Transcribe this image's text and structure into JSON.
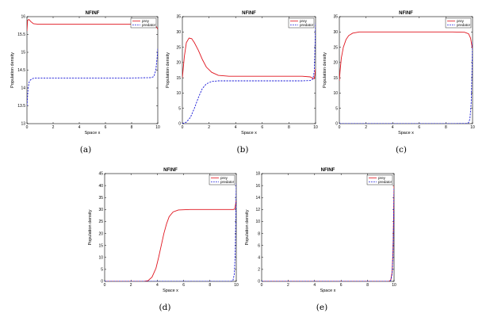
{
  "chart_data": [
    {
      "type": "line",
      "title": "NFINF",
      "xlabel": "Space x",
      "ylabel": "Population density",
      "caption": "(a)",
      "xlim": [
        0,
        10
      ],
      "ylim": [
        13,
        16
      ],
      "xticks": [
        "0",
        "2",
        "4",
        "6",
        "8",
        "10"
      ],
      "yticks": [
        "13",
        "13.5",
        "14",
        "14.5",
        "15",
        "15.5",
        "16"
      ],
      "legend": {
        "position": "top-right",
        "entries": [
          "prey",
          "predator"
        ]
      },
      "series": [
        {
          "name": "prey",
          "color": "#e0141e",
          "style": "solid",
          "x": [
            0,
            0.05,
            0.15,
            0.3,
            0.5,
            0.8,
            1.5,
            3,
            5,
            7,
            9,
            9.6,
            9.85,
            10
          ],
          "y": [
            15.6,
            15.9,
            15.92,
            15.86,
            15.8,
            15.79,
            15.79,
            15.79,
            15.79,
            15.79,
            15.79,
            15.78,
            15.74,
            15.65
          ]
        },
        {
          "name": "predator",
          "color": "#1a1ad8",
          "style": "dashed",
          "x": [
            0,
            0.08,
            0.15,
            0.25,
            0.4,
            0.6,
            1,
            2,
            4,
            6,
            8,
            9.5,
            9.7,
            9.85,
            9.95,
            10
          ],
          "y": [
            13.5,
            13.95,
            14.15,
            14.22,
            14.26,
            14.28,
            14.28,
            14.28,
            14.28,
            14.28,
            14.28,
            14.29,
            14.32,
            14.5,
            14.85,
            15.1
          ]
        }
      ]
    },
    {
      "type": "line",
      "title": "NFINF",
      "xlabel": "Space x",
      "ylabel": "Population density",
      "caption": "(b)",
      "xlim": [
        0,
        10
      ],
      "ylim": [
        0,
        35
      ],
      "xticks": [
        "0",
        "2",
        "4",
        "6",
        "8",
        "10"
      ],
      "yticks": [
        "0",
        "5",
        "10",
        "15",
        "20",
        "25",
        "30",
        "35"
      ],
      "legend": {
        "position": "top-right",
        "entries": [
          "prey",
          "predator"
        ]
      },
      "series": [
        {
          "name": "prey",
          "color": "#e0141e",
          "style": "solid",
          "x": [
            0,
            0.15,
            0.3,
            0.5,
            0.7,
            0.9,
            1.2,
            1.5,
            1.8,
            2.2,
            2.7,
            3.5,
            5,
            7,
            9,
            9.6,
            9.8,
            9.9,
            9.95,
            10
          ],
          "y": [
            15,
            22,
            26.5,
            28,
            27.8,
            26.5,
            24,
            21,
            18.5,
            16.8,
            15.8,
            15.5,
            15.5,
            15.5,
            15.5,
            15.3,
            14.8,
            14.7,
            16,
            18
          ]
        },
        {
          "name": "predator",
          "color": "#1a1ad8",
          "style": "dashed",
          "x": [
            0,
            0.3,
            0.6,
            0.9,
            1.2,
            1.5,
            1.8,
            2.2,
            2.7,
            3.5,
            5,
            7,
            9,
            9.6,
            9.8,
            9.9,
            9.95,
            10
          ],
          "y": [
            0,
            0.5,
            2,
            5,
            8.5,
            11.5,
            13,
            13.8,
            14,
            14,
            14,
            14,
            14,
            14.1,
            14.6,
            17,
            24,
            33
          ]
        }
      ]
    },
    {
      "type": "line",
      "title": "NFINF",
      "xlabel": "Space x",
      "ylabel": "Population density",
      "caption": "(c)",
      "xlim": [
        0,
        10
      ],
      "ylim": [
        0,
        35
      ],
      "xticks": [
        "0",
        "2",
        "4",
        "6",
        "8",
        "10"
      ],
      "yticks": [
        "0",
        "5",
        "10",
        "15",
        "20",
        "25",
        "30",
        "35"
      ],
      "legend": {
        "position": "top-right",
        "entries": [
          "prey",
          "predator"
        ]
      },
      "series": [
        {
          "name": "prey",
          "color": "#e0141e",
          "style": "solid",
          "x": [
            0,
            0.05,
            0.15,
            0.3,
            0.5,
            0.7,
            1,
            1.5,
            3,
            5,
            7,
            8.5,
            9.4,
            9.7,
            9.85,
            9.95,
            10
          ],
          "y": [
            14,
            17,
            21.5,
            25,
            27.5,
            28.8,
            29.6,
            30,
            30,
            30,
            30,
            30,
            29.9,
            29.4,
            28,
            25.5,
            24.5
          ]
        },
        {
          "name": "predator",
          "color": "#1a1ad8",
          "style": "dashed",
          "x": [
            0,
            2,
            4,
            6,
            8,
            9.5,
            9.7,
            9.8,
            9.9,
            9.95,
            10
          ],
          "y": [
            0,
            0,
            0,
            0,
            0,
            0.05,
            0.3,
            1.5,
            7,
            16,
            27
          ]
        }
      ]
    },
    {
      "type": "line",
      "title": "NFINF",
      "xlabel": "Space x",
      "ylabel": "Population density",
      "caption": "(d)",
      "xlim": [
        0,
        10
      ],
      "ylim": [
        0,
        45
      ],
      "xticks": [
        "0",
        "2",
        "4",
        "6",
        "8",
        "10"
      ],
      "yticks": [
        "0",
        "5",
        "10",
        "15",
        "20",
        "25",
        "30",
        "35",
        "40",
        "45"
      ],
      "legend": {
        "position": "top-right",
        "entries": [
          "prey",
          "predator"
        ]
      },
      "series": [
        {
          "name": "prey",
          "color": "#e0141e",
          "style": "solid",
          "x": [
            0,
            2,
            3,
            3.3,
            3.6,
            3.9,
            4.1,
            4.3,
            4.5,
            4.7,
            4.9,
            5.2,
            5.6,
            6.5,
            8,
            9.5,
            9.8,
            9.9,
            10
          ],
          "y": [
            0,
            0,
            0,
            0.3,
            1.8,
            5.5,
            10,
            15,
            20,
            24,
            27,
            29,
            29.8,
            30,
            30,
            30,
            30,
            30.5,
            34
          ]
        },
        {
          "name": "predator",
          "color": "#1a1ad8",
          "style": "dashed",
          "x": [
            0,
            2,
            4,
            6,
            8,
            9.6,
            9.75,
            9.85,
            9.92,
            9.97,
            10
          ],
          "y": [
            0,
            0,
            0,
            0,
            0,
            0,
            0.4,
            3,
            12,
            30,
            41
          ]
        }
      ]
    },
    {
      "type": "line",
      "title": "NFINF",
      "xlabel": "Space x",
      "ylabel": "Population density",
      "caption": "(e)",
      "xlim": [
        0,
        10
      ],
      "ylim": [
        0,
        18
      ],
      "xticks": [
        "0",
        "2",
        "4",
        "6",
        "8",
        "10"
      ],
      "yticks": [
        "0",
        "2",
        "4",
        "6",
        "8",
        "10",
        "12",
        "14",
        "16",
        "18"
      ],
      "legend": {
        "position": "top-right",
        "entries": [
          "prey",
          "predator"
        ]
      },
      "series": [
        {
          "name": "prey",
          "color": "#e0141e",
          "style": "solid",
          "x": [
            0,
            2,
            4,
            6,
            8,
            9.6,
            9.75,
            9.85,
            9.92,
            9.97,
            10
          ],
          "y": [
            0,
            0,
            0,
            0,
            0,
            0,
            0.2,
            1.5,
            5,
            11,
            16
          ]
        },
        {
          "name": "predator",
          "color": "#1a1ad8",
          "style": "dashed",
          "x": [
            0,
            2,
            4,
            6,
            8,
            9.6,
            9.75,
            9.85,
            9.92,
            9.97,
            10
          ],
          "y": [
            0,
            0,
            0,
            0,
            0,
            0,
            0.15,
            1.2,
            4.5,
            10.5,
            15.5
          ]
        }
      ]
    }
  ]
}
